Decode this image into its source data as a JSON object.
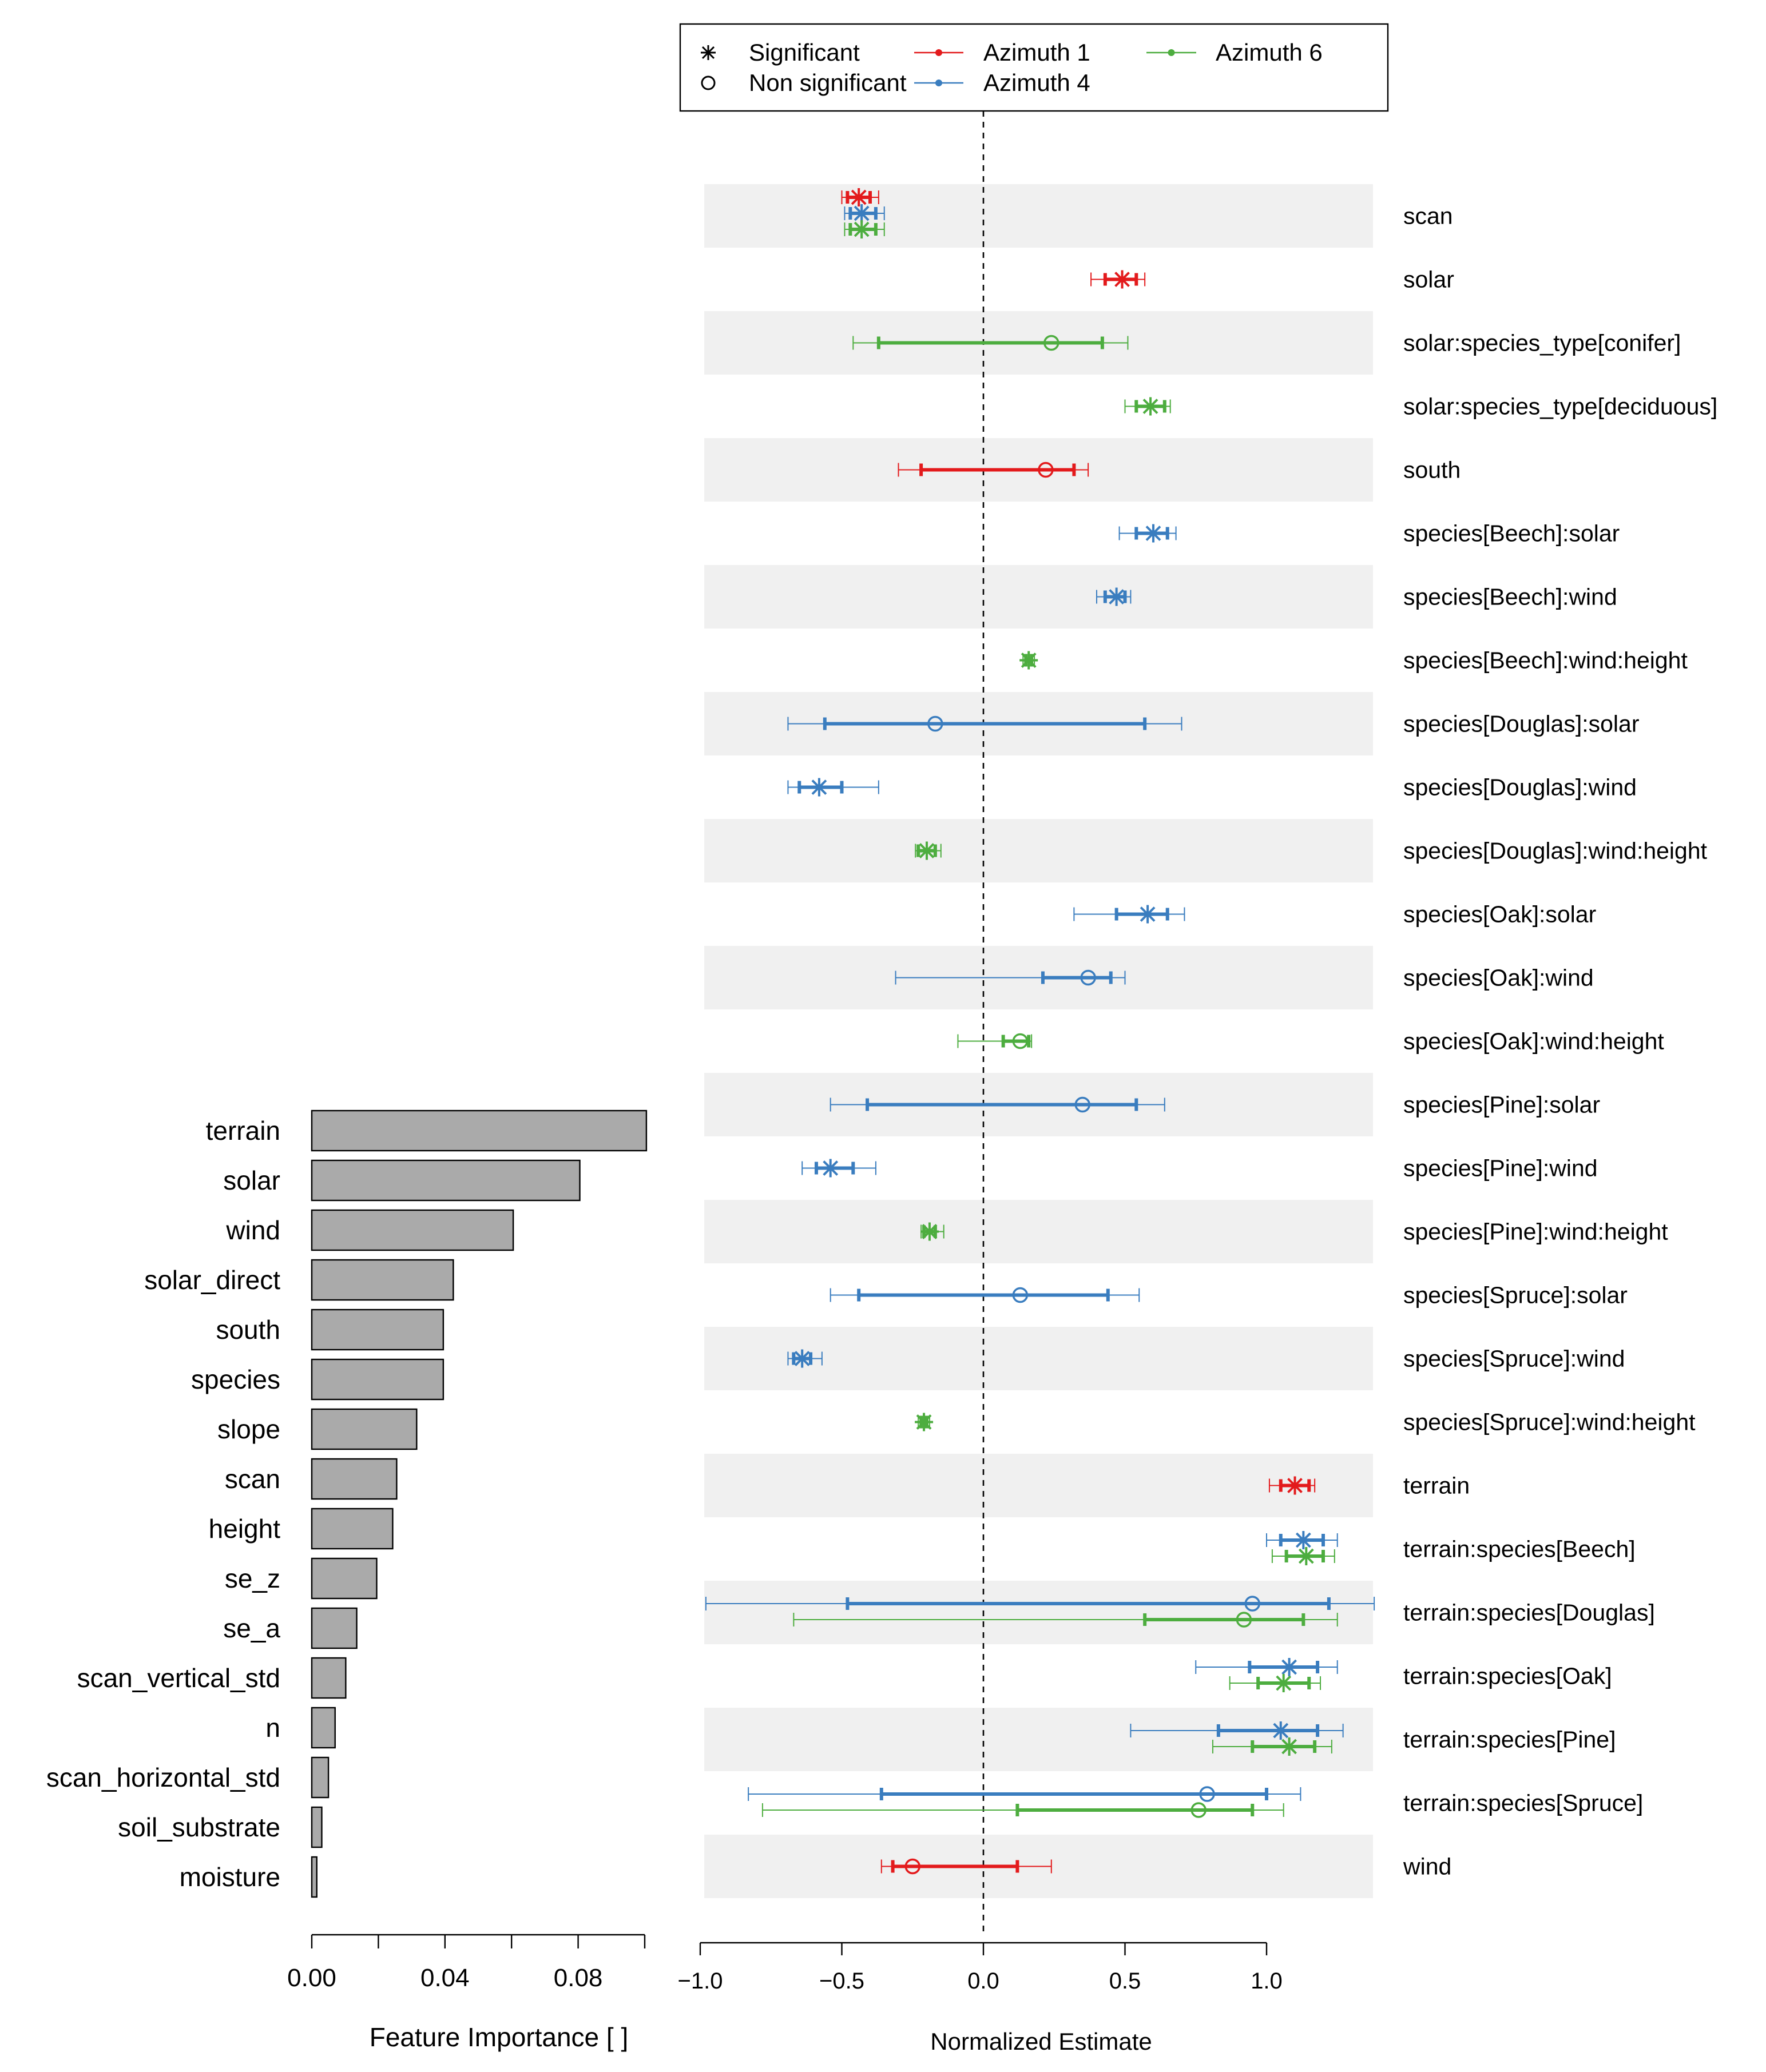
{
  "chart_data": [
    {
      "type": "bar",
      "orientation": "horizontal",
      "categories": [
        "terrain",
        "solar",
        "wind",
        "solar_direct",
        "south",
        "species",
        "slope",
        "scan",
        "height",
        "se_z",
        "se_a",
        "scan_vertical_std",
        "n",
        "scan_horizontal_std",
        "soil_substrate",
        "moisture"
      ],
      "values": [
        0.1005,
        0.0805,
        0.0605,
        0.0425,
        0.0395,
        0.0395,
        0.0315,
        0.0255,
        0.0243,
        0.0195,
        0.0135,
        0.0102,
        0.007,
        0.005,
        0.003,
        0.0015
      ],
      "xlim": [
        0,
        0.1
      ],
      "xticks": [
        0,
        0.02,
        0.04,
        0.06,
        0.08,
        0.1
      ],
      "xtick_labels": [
        "0.00",
        "0.04",
        "0.08"
      ],
      "xlabel": "Feature Importance [ ]",
      "bar_color": "#aaaaaa"
    },
    {
      "type": "forest",
      "xlabel": "Normalized Estimate",
      "xlim": [
        -1.0,
        1.4
      ],
      "xticks": [
        -1.0,
        -0.5,
        0.0,
        0.5,
        1.0
      ],
      "xtick_labels": [
        "−1.0",
        "−0.5",
        "0.0",
        "0.5",
        "1.0"
      ],
      "reference_line": 0,
      "legend": {
        "position": "top",
        "markers": [
          {
            "label": "Significant",
            "symbol": "asterisk"
          },
          {
            "label": "Non significant",
            "symbol": "circle"
          }
        ],
        "series": [
          {
            "name": "Azimuth 1",
            "color": "#e31a1c"
          },
          {
            "name": "Azimuth 4",
            "color": "#3a7dbf"
          },
          {
            "name": "Azimuth 6",
            "color": "#4dad3f"
          }
        ]
      },
      "terms": [
        "scan",
        "solar",
        "solar:species_type[conifer]",
        "solar:species_type[deciduous]",
        "south",
        "species[Beech]:solar",
        "species[Beech]:wind",
        "species[Beech]:wind:height",
        "species[Douglas]:solar",
        "species[Douglas]:wind",
        "species[Douglas]:wind:height",
        "species[Oak]:solar",
        "species[Oak]:wind",
        "species[Oak]:wind:height",
        "species[Pine]:solar",
        "species[Pine]:wind",
        "species[Pine]:wind:height",
        "species[Spruce]:solar",
        "species[Spruce]:wind",
        "species[Spruce]:wind:height",
        "terrain",
        "terrain:species[Beech]",
        "terrain:species[Douglas]",
        "terrain:species[Oak]",
        "terrain:species[Pine]",
        "terrain:species[Spruce]",
        "wind"
      ],
      "estimates": [
        {
          "term": 0,
          "series": 0,
          "est": -0.44,
          "lo_inner": -0.48,
          "hi_inner": -0.4,
          "lo_outer": -0.5,
          "hi_outer": -0.37,
          "significant": true
        },
        {
          "term": 0,
          "series": 1,
          "est": -0.43,
          "lo_inner": -0.47,
          "hi_inner": -0.38,
          "lo_outer": -0.49,
          "hi_outer": -0.35,
          "significant": true
        },
        {
          "term": 0,
          "series": 2,
          "est": -0.43,
          "lo_inner": -0.47,
          "hi_inner": -0.38,
          "lo_outer": -0.49,
          "hi_outer": -0.35,
          "significant": true
        },
        {
          "term": 1,
          "series": 0,
          "est": 0.49,
          "lo_inner": 0.43,
          "hi_inner": 0.54,
          "lo_outer": 0.38,
          "hi_outer": 0.57,
          "significant": true
        },
        {
          "term": 2,
          "series": 2,
          "est": 0.24,
          "lo_inner": -0.37,
          "hi_inner": 0.42,
          "lo_outer": -0.46,
          "hi_outer": 0.51,
          "significant": false
        },
        {
          "term": 3,
          "series": 2,
          "est": 0.59,
          "lo_inner": 0.54,
          "hi_inner": 0.64,
          "lo_outer": 0.5,
          "hi_outer": 0.66,
          "significant": true
        },
        {
          "term": 4,
          "series": 0,
          "est": 0.22,
          "lo_inner": -0.22,
          "hi_inner": 0.32,
          "lo_outer": -0.3,
          "hi_outer": 0.37,
          "significant": false
        },
        {
          "term": 5,
          "series": 1,
          "est": 0.6,
          "lo_inner": 0.54,
          "hi_inner": 0.65,
          "lo_outer": 0.48,
          "hi_outer": 0.68,
          "significant": true
        },
        {
          "term": 6,
          "series": 1,
          "est": 0.47,
          "lo_inner": 0.43,
          "hi_inner": 0.5,
          "lo_outer": 0.4,
          "hi_outer": 0.52,
          "significant": true
        },
        {
          "term": 7,
          "series": 2,
          "est": 0.16,
          "lo_inner": 0.15,
          "hi_inner": 0.17,
          "lo_outer": 0.14,
          "hi_outer": 0.18,
          "significant": true
        },
        {
          "term": 8,
          "series": 1,
          "est": -0.17,
          "lo_inner": -0.56,
          "hi_inner": 0.57,
          "lo_outer": -0.69,
          "hi_outer": 0.7,
          "significant": false
        },
        {
          "term": 9,
          "series": 1,
          "est": -0.58,
          "lo_inner": -0.65,
          "hi_inner": -0.5,
          "lo_outer": -0.69,
          "hi_outer": -0.37,
          "significant": true
        },
        {
          "term": 10,
          "series": 2,
          "est": -0.2,
          "lo_inner": -0.23,
          "hi_inner": -0.17,
          "lo_outer": -0.24,
          "hi_outer": -0.15,
          "significant": true
        },
        {
          "term": 11,
          "series": 1,
          "est": 0.58,
          "lo_inner": 0.47,
          "hi_inner": 0.65,
          "lo_outer": 0.32,
          "hi_outer": 0.71,
          "significant": true
        },
        {
          "term": 12,
          "series": 1,
          "est": 0.37,
          "lo_inner": 0.21,
          "hi_inner": 0.45,
          "lo_outer": -0.31,
          "hi_outer": 0.5,
          "significant": false
        },
        {
          "term": 13,
          "series": 2,
          "est": 0.13,
          "lo_inner": 0.07,
          "hi_inner": 0.16,
          "lo_outer": -0.09,
          "hi_outer": 0.17,
          "significant": false
        },
        {
          "term": 14,
          "series": 1,
          "est": 0.35,
          "lo_inner": -0.41,
          "hi_inner": 0.54,
          "lo_outer": -0.54,
          "hi_outer": 0.64,
          "significant": false
        },
        {
          "term": 15,
          "series": 1,
          "est": -0.54,
          "lo_inner": -0.59,
          "hi_inner": -0.46,
          "lo_outer": -0.64,
          "hi_outer": -0.38,
          "significant": true
        },
        {
          "term": 16,
          "series": 2,
          "est": -0.19,
          "lo_inner": -0.21,
          "hi_inner": -0.17,
          "lo_outer": -0.22,
          "hi_outer": -0.14,
          "significant": true
        },
        {
          "term": 17,
          "series": 1,
          "est": 0.13,
          "lo_inner": -0.44,
          "hi_inner": 0.44,
          "lo_outer": -0.54,
          "hi_outer": 0.55,
          "significant": false
        },
        {
          "term": 18,
          "series": 1,
          "est": -0.64,
          "lo_inner": -0.67,
          "hi_inner": -0.61,
          "lo_outer": -0.69,
          "hi_outer": -0.57,
          "significant": true
        },
        {
          "term": 19,
          "series": 2,
          "est": -0.21,
          "lo_inner": -0.22,
          "hi_inner": -0.2,
          "lo_outer": -0.23,
          "hi_outer": -0.19,
          "significant": true
        },
        {
          "term": 20,
          "series": 0,
          "est": 1.1,
          "lo_inner": 1.05,
          "hi_inner": 1.15,
          "lo_outer": 1.01,
          "hi_outer": 1.17,
          "significant": true
        },
        {
          "term": 21,
          "series": 1,
          "est": 1.13,
          "lo_inner": 1.05,
          "hi_inner": 1.2,
          "lo_outer": 1.0,
          "hi_outer": 1.25,
          "significant": true
        },
        {
          "term": 21,
          "series": 2,
          "est": 1.14,
          "lo_inner": 1.07,
          "hi_inner": 1.2,
          "lo_outer": 1.02,
          "hi_outer": 1.24,
          "significant": true
        },
        {
          "term": 22,
          "series": 1,
          "est": 0.95,
          "lo_inner": -0.48,
          "hi_inner": 1.22,
          "lo_outer": -0.98,
          "hi_outer": 1.38,
          "significant": false
        },
        {
          "term": 22,
          "series": 2,
          "est": 0.92,
          "lo_inner": 0.57,
          "hi_inner": 1.13,
          "lo_outer": -0.67,
          "hi_outer": 1.25,
          "significant": false
        },
        {
          "term": 23,
          "series": 1,
          "est": 1.08,
          "lo_inner": 0.94,
          "hi_inner": 1.18,
          "lo_outer": 0.75,
          "hi_outer": 1.25,
          "significant": true
        },
        {
          "term": 23,
          "series": 2,
          "est": 1.06,
          "lo_inner": 0.97,
          "hi_inner": 1.15,
          "lo_outer": 0.87,
          "hi_outer": 1.19,
          "significant": true
        },
        {
          "term": 24,
          "series": 1,
          "est": 1.05,
          "lo_inner": 0.83,
          "hi_inner": 1.18,
          "lo_outer": 0.52,
          "hi_outer": 1.27,
          "significant": true
        },
        {
          "term": 24,
          "series": 2,
          "est": 1.08,
          "lo_inner": 0.95,
          "hi_inner": 1.17,
          "lo_outer": 0.81,
          "hi_outer": 1.23,
          "significant": true
        },
        {
          "term": 25,
          "series": 1,
          "est": 0.79,
          "lo_inner": -0.36,
          "hi_inner": 1.0,
          "lo_outer": -0.83,
          "hi_outer": 1.12,
          "significant": false
        },
        {
          "term": 25,
          "series": 2,
          "est": 0.76,
          "lo_inner": 0.12,
          "hi_inner": 0.95,
          "lo_outer": -0.78,
          "hi_outer": 1.06,
          "significant": false
        },
        {
          "term": 26,
          "series": 0,
          "est": -0.25,
          "lo_inner": -0.32,
          "hi_inner": 0.12,
          "lo_outer": -0.36,
          "hi_outer": 0.24,
          "significant": false
        }
      ]
    }
  ]
}
